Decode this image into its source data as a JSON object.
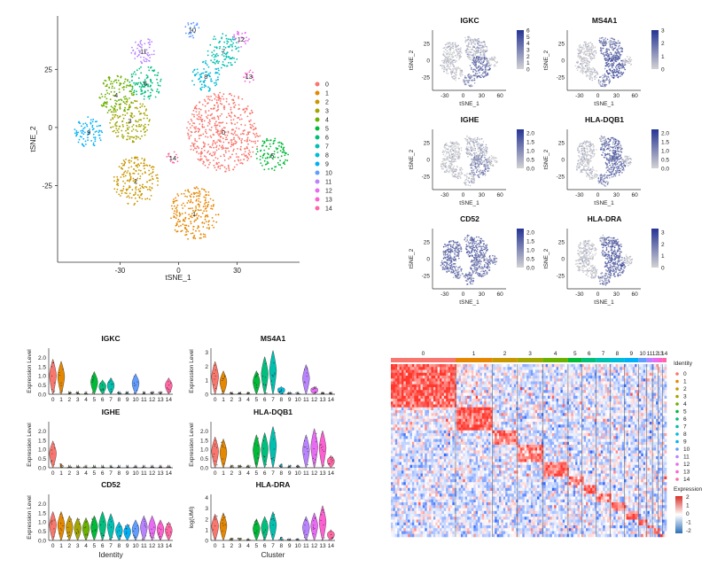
{
  "colors": [
    "#F8766D",
    "#E58700",
    "#C99800",
    "#A3A500",
    "#6BB100",
    "#00BA38",
    "#00BF7D",
    "#00C0AF",
    "#00BCD8",
    "#00B0F6",
    "#619CFF",
    "#B983FF",
    "#E76BF3",
    "#FD61D1",
    "#FF67A4"
  ],
  "chart_data": [
    {
      "type": "scatter",
      "id": "tsne_clusters",
      "xlabel": "tSNE_1",
      "ylabel": "tSNE_2",
      "xticks": [
        -30,
        0,
        30
      ],
      "yticks": [
        25,
        0,
        -25
      ],
      "xlim": [
        -62,
        62
      ],
      "ylim": [
        -58,
        48
      ],
      "legend": [
        "0",
        "1",
        "2",
        "3",
        "4",
        "5",
        "6",
        "7",
        "8",
        "9",
        "10",
        "11",
        "12",
        "13",
        "14"
      ],
      "clusters": [
        {
          "name": "0",
          "cx": 23,
          "cy": -2,
          "r": 18
        },
        {
          "name": "1",
          "cx": 8,
          "cy": -37,
          "r": 12
        },
        {
          "name": "2",
          "cx": -22,
          "cy": -23,
          "r": 11
        },
        {
          "name": "3",
          "cx": -25,
          "cy": 3,
          "r": 10
        },
        {
          "name": "4",
          "cx": -32,
          "cy": 14,
          "r": 9
        },
        {
          "name": "5",
          "cx": 48,
          "cy": -12,
          "r": 8
        },
        {
          "name": "6",
          "cx": -17,
          "cy": 19,
          "r": 8
        },
        {
          "name": "7",
          "cx": 23,
          "cy": 33,
          "r": 8
        },
        {
          "name": "8",
          "cx": 14,
          "cy": 22,
          "r": 7
        },
        {
          "name": "9",
          "cx": -46,
          "cy": -2,
          "r": 7
        },
        {
          "name": "10",
          "cx": 7,
          "cy": 42,
          "r": 4
        },
        {
          "name": "11",
          "cx": -18,
          "cy": 33,
          "r": 6
        },
        {
          "name": "12",
          "cx": 32,
          "cy": 38,
          "r": 4
        },
        {
          "name": "13",
          "cx": 36,
          "cy": 22,
          "r": 3
        },
        {
          "name": "14",
          "cx": -3,
          "cy": -13,
          "r": 3
        }
      ]
    },
    {
      "type": "scatter",
      "id": "feature_plots",
      "xlabel": "tSNE_1",
      "ylabel": "tSNE_2",
      "xticks": [
        -30,
        0,
        30,
        60
      ],
      "yticks": [
        25,
        0,
        -25
      ],
      "panels": [
        {
          "title": "IGKC",
          "scale": [
            "0",
            "1",
            "2",
            "3",
            "4",
            "5",
            "6"
          ],
          "max": 6
        },
        {
          "title": "MS4A1",
          "scale": [
            "0",
            "1",
            "2",
            "3"
          ],
          "max": 3
        },
        {
          "title": "IGHE",
          "scale": [
            "0.0",
            "0.5",
            "1.0",
            "1.5",
            "2.0"
          ],
          "max": 2.2
        },
        {
          "title": "HLA-DQB1",
          "scale": [
            "0.0",
            "0.5",
            "1.0",
            "1.5",
            "2.0"
          ],
          "max": 2.2
        },
        {
          "title": "CD52",
          "scale": [
            "0.0",
            "0.5",
            "1.0",
            "1.5",
            "2.0"
          ],
          "max": 2.2
        },
        {
          "title": "HLA-DRA",
          "scale": [
            "0",
            "1",
            "2",
            "3"
          ],
          "max": 3.3
        }
      ]
    },
    {
      "type": "violin",
      "id": "violin_plots",
      "categories": [
        "0",
        "1",
        "2",
        "3",
        "4",
        "5",
        "6",
        "7",
        "8",
        "9",
        "10",
        "11",
        "12",
        "13",
        "14"
      ],
      "xlabel_left": "Identity",
      "xlabel_right": "Cluster",
      "panels": [
        {
          "title": "IGKC",
          "ylabel": "Expression Level",
          "yticks": [
            "0.0",
            "0.5",
            "1.0",
            "1.5",
            "2.0"
          ],
          "ymax": 2.5,
          "values": [
            1.7,
            1.6,
            0.1,
            0.1,
            0.05,
            1.1,
            0.7,
            0.8,
            0.1,
            0.1,
            1.0,
            0.1,
            0.1,
            0.1,
            0.8
          ]
        },
        {
          "title": "MS4A1",
          "ylabel": "Expression Level",
          "yticks": [
            "0",
            "1",
            "2",
            "3"
          ],
          "ymax": 3.3,
          "values": [
            2.1,
            1.5,
            0.1,
            0.1,
            0.1,
            1.5,
            2.4,
            2.8,
            0.5,
            0.1,
            0.1,
            1.9,
            0.5,
            0.1,
            0.1
          ]
        },
        {
          "title": "IGHE",
          "ylabel": "Expression Level",
          "yticks": [
            "0.0",
            "0.5",
            "1.0",
            "1.5",
            "2.0"
          ],
          "ymax": 2.5,
          "values": [
            1.3,
            0.2,
            0.05,
            0.05,
            0.05,
            0.05,
            0.05,
            0.05,
            0.05,
            0.05,
            0.05,
            0.05,
            0.05,
            0.05,
            0.05
          ]
        },
        {
          "title": "HLA-DQB1",
          "ylabel": "Expression Level",
          "yticks": [
            "0.0",
            "0.5",
            "1.0",
            "1.5",
            "2.0"
          ],
          "ymax": 2.5,
          "values": [
            1.5,
            1.4,
            0.1,
            0.1,
            0.1,
            1.6,
            1.7,
            2.0,
            0.2,
            0.1,
            0.1,
            1.6,
            1.9,
            1.8,
            0.6
          ]
        },
        {
          "title": "CD52",
          "ylabel": "Expression Level",
          "yticks": [
            "0.0",
            "0.5",
            "1.0",
            "1.5",
            "2.0"
          ],
          "ymax": 2.5,
          "values": [
            1.4,
            1.4,
            1.2,
            1.1,
            1.1,
            1.2,
            1.4,
            1.3,
            0.9,
            0.8,
            1.0,
            1.2,
            1.2,
            1.0,
            0.9
          ]
        },
        {
          "title": "HLA-DRA",
          "ylabel": "log(UMI)",
          "yticks": [
            "0",
            "1",
            "2",
            "3",
            "4"
          ],
          "ymax": 4.3,
          "values": [
            2.2,
            2.3,
            0.2,
            0.2,
            0.1,
            1.8,
            2.0,
            2.4,
            0.3,
            0.1,
            0.1,
            2.0,
            2.3,
            2.9,
            0.9
          ]
        }
      ]
    },
    {
      "type": "heatmap",
      "id": "marker_heatmap",
      "columns": [
        "0",
        "1",
        "2",
        "3",
        "4",
        "5",
        "6",
        "7",
        "8",
        "9",
        "10",
        "11",
        "12",
        "13",
        "14"
      ],
      "column_widths": [
        0.23,
        0.13,
        0.09,
        0.09,
        0.09,
        0.05,
        0.05,
        0.05,
        0.05,
        0.05,
        0.03,
        0.02,
        0.02,
        0.015,
        0.015
      ],
      "legend_identity_title": "Identity",
      "legend_expression_title": "Expression",
      "expression_ticks": [
        "2",
        "1",
        "0",
        "-1",
        "-2"
      ]
    }
  ]
}
